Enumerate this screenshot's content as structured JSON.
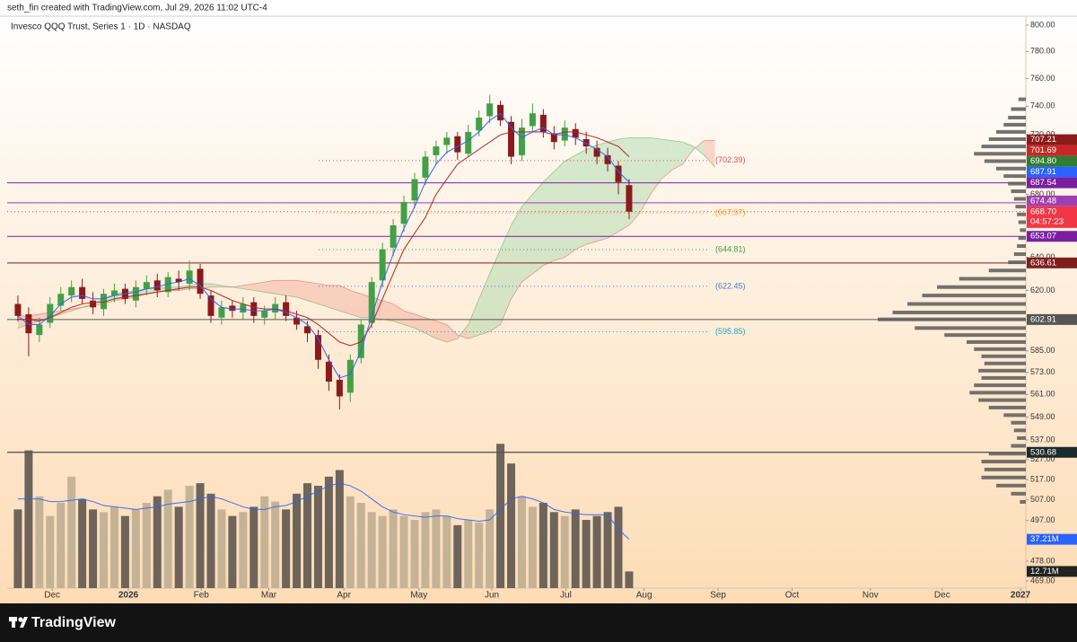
{
  "header": {
    "credit": "seth_fin created with TradingView.com, Jul 29, 2026 11:02 UTC-4",
    "brand": "TradingView"
  },
  "chart_data": {
    "type": "candlestick",
    "title": "Invesco QQQ Trust, Series 1 · 1D · NASDAQ",
    "log_scale": true,
    "xlim": [
      -1,
      94
    ],
    "xticks": [
      {
        "value": 3.2,
        "label": "Dec"
      },
      {
        "value": 10.3,
        "label": "2026"
      },
      {
        "value": 17.1,
        "label": "Feb"
      },
      {
        "value": 23.4,
        "label": "Mar"
      },
      {
        "value": 30.4,
        "label": "Apr"
      },
      {
        "value": 37.4,
        "label": "May"
      },
      {
        "value": 44.2,
        "label": "Jun"
      },
      {
        "value": 51.1,
        "label": "Jul"
      },
      {
        "value": 58.4,
        "label": "Aug"
      },
      {
        "value": 65.3,
        "label": "Sep"
      },
      {
        "value": 72.2,
        "label": "Oct"
      },
      {
        "value": 79.5,
        "label": "Nov"
      },
      {
        "value": 86.2,
        "label": "Dec"
      },
      {
        "value": 93.5,
        "label": "2027"
      }
    ],
    "ylim": [
      469,
      800
    ],
    "yticks": [
      {
        "value": 800,
        "label": "800.00"
      },
      {
        "value": 780,
        "label": "780.00"
      },
      {
        "value": 760,
        "label": "760.00"
      },
      {
        "value": 740,
        "label": "740.00"
      },
      {
        "value": 720,
        "label": "720.00"
      },
      {
        "value": 680,
        "label": "680.00"
      },
      {
        "value": 640,
        "label": "640.00"
      },
      {
        "value": 620,
        "label": "620.00"
      },
      {
        "value": 585,
        "label": "585.00"
      },
      {
        "value": 573,
        "label": "573.00"
      },
      {
        "value": 561,
        "label": "561.00"
      },
      {
        "value": 549,
        "label": "549.00"
      },
      {
        "value": 537,
        "label": "537.00"
      },
      {
        "value": 527,
        "label": "527.00"
      },
      {
        "value": 517,
        "label": "517.00"
      },
      {
        "value": 507,
        "label": "507.00"
      },
      {
        "value": 497,
        "label": "497.00"
      },
      {
        "value": 478,
        "label": "478.00"
      },
      {
        "value": 469,
        "label": "469.00"
      }
    ],
    "up_color": "#43a047",
    "down_color": "#8b1a1a",
    "open": [
      612,
      606,
      594,
      601,
      611,
      617,
      622,
      614,
      609,
      617,
      621,
      614,
      621,
      626,
      619,
      627,
      624,
      633,
      617,
      604,
      611,
      607,
      613,
      604,
      607,
      613,
      604,
      599,
      594,
      579,
      569,
      562,
      581,
      601,
      626,
      646,
      661,
      676,
      691,
      706,
      713,
      719,
      707,
      723,
      733,
      741,
      729,
      706,
      726,
      734,
      721,
      716,
      724,
      717,
      711,
      706,
      699,
      686
    ],
    "high": [
      617,
      610,
      604,
      616,
      622,
      626,
      627,
      619,
      621,
      624,
      624,
      626,
      629,
      630,
      631,
      632,
      638,
      636,
      620,
      614,
      614,
      616,
      616,
      611,
      616,
      617,
      608,
      602,
      597,
      583,
      572,
      583,
      603,
      628,
      649,
      664,
      679,
      694,
      709,
      716,
      722,
      722,
      727,
      737,
      748,
      744,
      733,
      731,
      742,
      738,
      726,
      730,
      728,
      722,
      716,
      711,
      702,
      690
    ],
    "low": [
      602,
      582,
      590,
      598,
      608,
      613,
      612,
      606,
      605,
      613,
      612,
      610,
      617,
      616,
      616,
      620,
      620,
      615,
      601,
      600,
      604,
      603,
      601,
      600,
      603,
      602,
      597,
      590,
      575,
      563,
      553,
      557,
      578,
      598,
      622,
      641,
      656,
      671,
      686,
      700,
      707,
      703,
      705,
      719,
      728,
      726,
      700,
      702,
      722,
      718,
      710,
      712,
      713,
      707,
      700,
      695,
      680,
      664
    ],
    "close": [
      605,
      595,
      600,
      612,
      618,
      622,
      615,
      610,
      618,
      620,
      615,
      622,
      625,
      620,
      628,
      625,
      632,
      618,
      605,
      610,
      608,
      612,
      605,
      608,
      612,
      605,
      600,
      595,
      580,
      568,
      560,
      580,
      600,
      625,
      645,
      660,
      675,
      690,
      705,
      712,
      718,
      708,
      722,
      732,
      742,
      730,
      705,
      725,
      735,
      722,
      715,
      725,
      718,
      712,
      705,
      700,
      688,
      668.7
    ],
    "tenkan": {
      "color": "#2962ff",
      "values": [
        605,
        600,
        600,
        605,
        612,
        616,
        617,
        615,
        615,
        617,
        618,
        619,
        621,
        622,
        624,
        625,
        627,
        623,
        615,
        610,
        609,
        609,
        608,
        608,
        609,
        607,
        604,
        600,
        592,
        580,
        570,
        572,
        585,
        605,
        625,
        642,
        658,
        672,
        688,
        700,
        708,
        712,
        716,
        722,
        730,
        735,
        725,
        718,
        722,
        725,
        720,
        720,
        718,
        714,
        710,
        705,
        695,
        688
      ]
    },
    "kijun": {
      "color": "#b22222",
      "values": [
        603,
        603,
        602,
        604,
        607,
        610,
        612,
        613,
        613,
        615,
        616,
        617,
        618,
        619,
        620,
        621,
        622,
        622,
        620,
        617,
        614,
        612,
        610,
        609,
        609,
        608,
        606,
        604,
        600,
        595,
        590,
        588,
        590,
        600,
        615,
        630,
        645,
        655,
        665,
        680,
        690,
        700,
        705,
        710,
        715,
        720,
        722,
        722,
        722,
        722,
        720,
        722,
        722,
        720,
        718,
        715,
        712,
        705
      ]
    },
    "cloud": {
      "up_color": "#a5d6a7",
      "down_color": "#f4a99a",
      "span_a": [
        598,
        600,
        602,
        604,
        606,
        608,
        610,
        612,
        615,
        618,
        619,
        620,
        621,
        621,
        622,
        622,
        623,
        624,
        624,
        623,
        622,
        621,
        620,
        619,
        618,
        617,
        616,
        614,
        612,
        610,
        608,
        606,
        604,
        604,
        603,
        602,
        600,
        598,
        595,
        592,
        590,
        592,
        600,
        615,
        630,
        645,
        660,
        672,
        680,
        688,
        695,
        702,
        706,
        710,
        713,
        715,
        717,
        718,
        718,
        718,
        717,
        716,
        715,
        712,
        706,
        698
      ],
      "span_b": [
        605,
        605,
        606,
        607,
        608,
        609,
        610,
        611,
        612,
        614,
        615,
        616,
        618,
        619,
        620,
        620,
        621,
        621,
        622,
        622,
        622,
        623,
        624,
        625,
        626,
        626,
        626,
        625,
        624,
        623,
        623,
        620,
        618,
        616,
        614,
        612,
        608,
        606,
        604,
        602,
        600,
        594,
        592,
        594,
        596,
        600,
        615,
        625,
        630,
        635,
        638,
        640,
        645,
        648,
        650,
        652,
        656,
        660,
        668,
        680,
        690,
        696,
        700,
        710,
        716,
        716
      ]
    },
    "volume": {
      "ylim": [
        0,
        115
      ],
      "up_color": "#bfae94",
      "down_color": "#5e5750",
      "ma_color": "#2962ff",
      "values": [
        60,
        105,
        70,
        55,
        65,
        85,
        68,
        60,
        58,
        62,
        55,
        60,
        65,
        70,
        75,
        62,
        78,
        80,
        72,
        60,
        55,
        58,
        62,
        70,
        66,
        60,
        72,
        80,
        78,
        85,
        90,
        70,
        65,
        58,
        55,
        60,
        55,
        52,
        58,
        60,
        55,
        48,
        52,
        50,
        60,
        110,
        95,
        70,
        62,
        65,
        58,
        55,
        60,
        52,
        55,
        58,
        62,
        12.71
      ],
      "ma": [
        68,
        68,
        68,
        66,
        66,
        67,
        68,
        66,
        63,
        62,
        61,
        60,
        61,
        62,
        64,
        65,
        66,
        68,
        70,
        68,
        65,
        62,
        60,
        60,
        62,
        63,
        66,
        70,
        74,
        78,
        80,
        78,
        74,
        68,
        62,
        58,
        56,
        55,
        54,
        55,
        55,
        53,
        52,
        51,
        52,
        60,
        68,
        70,
        68,
        65,
        60,
        58,
        57,
        56,
        56,
        56,
        45,
        37.21
      ]
    },
    "levels": [
      {
        "value": 702.39,
        "label": "(702.39)",
        "color": "#e05050"
      },
      {
        "value": 667.97,
        "label": "(667.97)",
        "color": "#f0a020"
      },
      {
        "value": 644.81,
        "label": "(644.81)",
        "color": "#43a047"
      },
      {
        "value": 622.45,
        "label": "(622.45)",
        "color": "#4a7fd0"
      },
      {
        "value": 595.85,
        "label": "(595.85)",
        "color": "#20a8c8"
      }
    ],
    "price_tags": [
      {
        "value": 707.21,
        "label": "707.21",
        "color": "#8b1a1a",
        "line": false
      },
      {
        "value": 701.69,
        "label": "701.69",
        "color": "#c62828",
        "line": false
      },
      {
        "value": 694.8,
        "label": "694.80",
        "color": "#2e7d32",
        "line": false
      },
      {
        "value": 687.91,
        "label": "687.91",
        "color": "#2962ff",
        "line": false
      },
      {
        "value": 687.54,
        "label": "687.54",
        "color": "#7b1fa2",
        "line": true
      },
      {
        "value": 674.48,
        "label": "674.48",
        "color": "#a040b0",
        "line": true
      },
      {
        "value": 668.7,
        "label": "668.70",
        "color": "#f23645",
        "line": false
      },
      {
        "value": 653.07,
        "label": "653.07",
        "color": "#7b1fa2",
        "line": true
      },
      {
        "value": 636.61,
        "label": "636.61",
        "color": "#7f1d1d",
        "line": true
      },
      {
        "value": 602.91,
        "label": "602.91",
        "color": "#555555",
        "line": true
      },
      {
        "value": 530.68,
        "label": "530.68",
        "color": "#1b2b2b",
        "line": true
      }
    ],
    "countdown": "04:57:23",
    "volume_tags": [
      {
        "value": 37.21,
        "label": "37.21M",
        "color": "#2962ff"
      },
      {
        "value": 12.71,
        "label": "12.71M",
        "color": "#222222"
      }
    ],
    "volume_profile": {
      "color": "#5a5a5a",
      "prices": [
        745,
        738,
        732,
        727,
        722,
        717,
        712,
        707,
        702,
        697,
        692,
        687,
        682,
        677,
        672,
        667,
        662,
        657,
        652,
        647,
        642,
        637,
        632,
        627,
        622,
        617,
        612,
        607,
        603,
        598,
        594,
        590,
        586,
        582,
        578,
        574,
        570,
        566,
        562,
        558,
        554,
        550,
        546,
        542,
        538,
        534,
        530,
        526,
        522,
        518,
        514,
        510,
        506
      ],
      "values": [
        5,
        10,
        12,
        15,
        20,
        25,
        30,
        35,
        28,
        20,
        15,
        12,
        10,
        8,
        7,
        6,
        5,
        4,
        5,
        6,
        8,
        12,
        25,
        45,
        60,
        70,
        80,
        90,
        100,
        75,
        55,
        40,
        35,
        30,
        28,
        32,
        30,
        35,
        38,
        32,
        25,
        15,
        10,
        8,
        6,
        10,
        25,
        30,
        28,
        30,
        20,
        10,
        4
      ]
    }
  }
}
